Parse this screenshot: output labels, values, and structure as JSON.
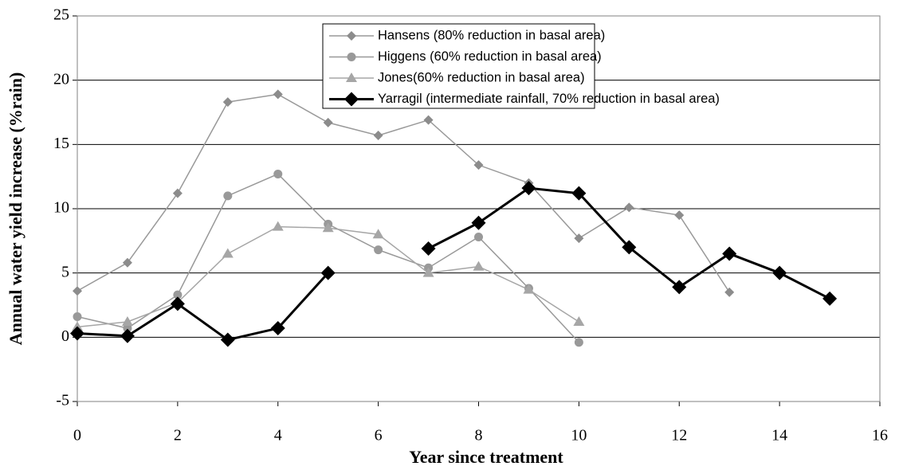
{
  "chart_data": {
    "type": "line",
    "xlabel": "Year since treatment",
    "ylabel": "Annual water yield increase (%rain)",
    "x": [
      0,
      1,
      2,
      3,
      4,
      5,
      6,
      7,
      8,
      9,
      10,
      11,
      12,
      13,
      14,
      15
    ],
    "series": [
      {
        "name": "Hansens (80% reduction in basal area)",
        "color": "#999999",
        "marker_color": "#8c8c8c",
        "marker": "diamond",
        "line_width": 1.5,
        "values": [
          3.6,
          5.8,
          11.2,
          18.3,
          18.9,
          16.7,
          15.7,
          16.9,
          13.4,
          12.0,
          7.7,
          10.1,
          9.5,
          3.5,
          null,
          null
        ]
      },
      {
        "name": "Higgens (60% reduction in basal area)",
        "color": "#999999",
        "marker_color": "#999999",
        "marker": "circle",
        "line_width": 1.5,
        "values": [
          1.6,
          0.7,
          3.3,
          11.0,
          12.7,
          8.8,
          6.8,
          5.4,
          7.8,
          3.8,
          -0.4,
          null,
          null,
          null,
          null,
          null
        ]
      },
      {
        "name": "Jones(60% reduction in basal area)",
        "color": "#a6a6a6",
        "marker_color": "#a6a6a6",
        "marker": "triangle",
        "line_width": 1.5,
        "values": [
          0.8,
          1.2,
          2.7,
          6.5,
          8.6,
          8.5,
          8.0,
          5.0,
          5.5,
          3.7,
          1.2,
          null,
          null,
          null,
          null,
          null
        ]
      },
      {
        "name": "Yarragil (intermediate rainfall, 70% reduction in basal area)",
        "color": "#000000",
        "marker_color": "#000000",
        "marker": "bigdiamond",
        "line_width": 3,
        "values": [
          0.3,
          0.1,
          2.6,
          -0.2,
          0.7,
          5.0,
          null,
          6.9,
          8.9,
          11.6,
          11.2,
          7.0,
          3.9,
          6.5,
          5.0,
          3.0
        ]
      }
    ],
    "xlim": [
      0,
      16
    ],
    "xticks": [
      0,
      2,
      4,
      6,
      8,
      10,
      12,
      14,
      16
    ],
    "ylim": [
      -5,
      25
    ],
    "yticks": [
      -5,
      0,
      5,
      10,
      15,
      20,
      25
    ],
    "grid": true
  }
}
